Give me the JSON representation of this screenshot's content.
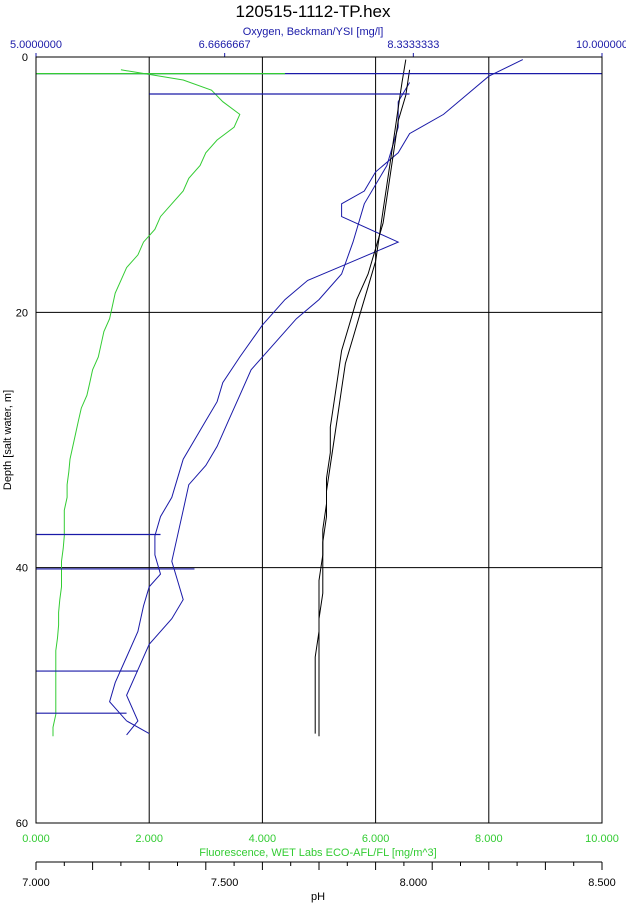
{
  "chart_data": {
    "type": "line",
    "title": "120515-1112-TP.hex",
    "ylabel": "Depth [salt water, m]",
    "ylim": [
      0,
      60
    ],
    "yticks": [
      "0",
      "20",
      "40",
      "60"
    ],
    "grid": true,
    "axes": {
      "oxygen": {
        "label": "Oxygen, Beckman/YSI [mg/l]",
        "range": [
          5.0,
          10.0
        ],
        "ticks": [
          "5.0000000",
          "6.6666667",
          "8.3333333",
          "10.000000"
        ],
        "color": "#1a1aa8",
        "position": "top"
      },
      "fluorescence": {
        "label": "Fluorescence, WET Labs ECO-AFL/FL [mg/m^3]",
        "range": [
          0,
          10
        ],
        "ticks": [
          "0.000",
          "2.000",
          "4.000",
          "6.000",
          "8.000",
          "10.000"
        ],
        "color": "#33cc33",
        "position": "bottom"
      },
      "ph": {
        "label": "pH",
        "range": [
          7.0,
          8.5
        ],
        "ticks": [
          "7.000",
          "7.500",
          "8.000",
          "8.500"
        ],
        "color": "#000000",
        "position": "bottom-2"
      }
    },
    "series": [
      {
        "axis": "fluorescence",
        "color": "#33cc33",
        "points": [
          [
            1.5,
            1.0
          ],
          [
            2.6,
            1.8
          ],
          [
            3.1,
            2.6
          ],
          [
            3.3,
            3.5
          ],
          [
            3.6,
            4.5
          ],
          [
            3.5,
            5.5
          ],
          [
            3.2,
            6.5
          ],
          [
            3.0,
            7.5
          ],
          [
            2.9,
            8.5
          ],
          [
            2.7,
            9.5
          ],
          [
            2.6,
            10.5
          ],
          [
            2.4,
            11.5
          ],
          [
            2.2,
            12.5
          ],
          [
            2.1,
            13.5
          ],
          [
            1.9,
            14.5
          ],
          [
            1.8,
            15.5
          ],
          [
            1.6,
            16.5
          ],
          [
            1.5,
            17.5
          ],
          [
            1.4,
            18.5
          ],
          [
            1.35,
            19.5
          ],
          [
            1.3,
            20.5
          ],
          [
            1.2,
            21.5
          ],
          [
            1.15,
            22.5
          ],
          [
            1.1,
            23.5
          ],
          [
            1.0,
            24.5
          ],
          [
            0.95,
            25.5
          ],
          [
            0.9,
            26.5
          ],
          [
            0.8,
            27.5
          ],
          [
            0.75,
            28.5
          ],
          [
            0.7,
            29.5
          ],
          [
            0.65,
            30.5
          ],
          [
            0.6,
            31.5
          ],
          [
            0.58,
            32.5
          ],
          [
            0.55,
            33.5
          ],
          [
            0.55,
            34.5
          ],
          [
            0.5,
            35.5
          ],
          [
            0.5,
            36.5
          ],
          [
            0.5,
            37.5
          ],
          [
            0.48,
            38.5
          ],
          [
            0.45,
            39.5
          ],
          [
            0.45,
            40.5
          ],
          [
            0.45,
            41.5
          ],
          [
            0.42,
            42.5
          ],
          [
            0.4,
            43.5
          ],
          [
            0.4,
            44.5
          ],
          [
            0.38,
            45.5
          ],
          [
            0.35,
            46.5
          ],
          [
            0.35,
            47.5
          ],
          [
            0.35,
            48.5
          ],
          [
            0.35,
            49.5
          ],
          [
            0.35,
            50.5
          ],
          [
            0.35,
            51.5
          ],
          [
            0.3,
            52.5
          ],
          [
            0.3,
            53.2
          ]
        ]
      },
      {
        "axis": "oxygen",
        "color": "#1a1aa8",
        "points": [
          [
            9.3,
            0.2
          ],
          [
            9.0,
            1.5
          ],
          [
            8.8,
            3.0
          ],
          [
            8.6,
            4.5
          ],
          [
            8.3,
            6.0
          ],
          [
            8.2,
            7.5
          ],
          [
            8.0,
            9.0
          ],
          [
            7.9,
            10.5
          ],
          [
            7.7,
            11.5
          ],
          [
            7.7,
            12.5
          ],
          [
            8.2,
            14.5
          ],
          [
            7.8,
            16.0
          ],
          [
            7.4,
            17.5
          ],
          [
            7.2,
            19.0
          ],
          [
            7.0,
            21.0
          ],
          [
            6.8,
            23.5
          ],
          [
            6.65,
            25.5
          ],
          [
            6.6,
            27.0
          ],
          [
            6.5,
            28.5
          ],
          [
            6.4,
            30.0
          ],
          [
            6.3,
            31.5
          ],
          [
            6.25,
            33.0
          ],
          [
            6.2,
            34.5
          ],
          [
            6.1,
            36.0
          ],
          [
            6.05,
            37.5
          ],
          [
            6.05,
            39.0
          ],
          [
            6.1,
            40.5
          ],
          [
            6.0,
            41.5
          ],
          [
            5.95,
            43.0
          ],
          [
            5.9,
            45.0
          ],
          [
            5.8,
            47.0
          ],
          [
            5.7,
            49.0
          ],
          [
            5.65,
            50.5
          ],
          [
            5.8,
            52.0
          ],
          [
            6.0,
            53.0
          ]
        ]
      },
      {
        "axis": "oxygen",
        "color": "#1a1aa8",
        "points": [
          [
            8.3,
            2.0
          ],
          [
            8.2,
            3.5
          ],
          [
            8.2,
            5.5
          ],
          [
            8.1,
            8.5
          ],
          [
            7.9,
            11.5
          ],
          [
            7.8,
            14.5
          ],
          [
            7.7,
            17.0
          ],
          [
            7.5,
            19.0
          ],
          [
            7.3,
            20.5
          ],
          [
            7.1,
            22.5
          ],
          [
            6.9,
            24.5
          ],
          [
            6.8,
            26.5
          ],
          [
            6.7,
            28.5
          ],
          [
            6.6,
            30.5
          ],
          [
            6.5,
            32.0
          ],
          [
            6.35,
            33.5
          ],
          [
            6.3,
            35.5
          ],
          [
            6.25,
            37.5
          ],
          [
            6.2,
            39.5
          ],
          [
            6.25,
            41.0
          ],
          [
            6.3,
            42.5
          ],
          [
            6.2,
            44.0
          ],
          [
            6.0,
            46.0
          ],
          [
            5.9,
            48.0
          ],
          [
            5.8,
            50.0
          ],
          [
            5.9,
            52.0
          ],
          [
            5.8,
            53.1
          ]
        ]
      },
      {
        "axis": "ph",
        "color": "#000000",
        "points": [
          [
            7.98,
            0.2
          ],
          [
            7.97,
            2.0
          ],
          [
            7.96,
            4.0
          ],
          [
            7.95,
            6.0
          ],
          [
            7.94,
            8.0
          ],
          [
            7.93,
            10.0
          ],
          [
            7.92,
            12.0
          ],
          [
            7.91,
            14.0
          ],
          [
            7.9,
            16.0
          ],
          [
            7.88,
            18.0
          ],
          [
            7.86,
            20.0
          ],
          [
            7.84,
            22.0
          ],
          [
            7.82,
            24.0
          ],
          [
            7.81,
            26.0
          ],
          [
            7.8,
            28.0
          ],
          [
            7.79,
            30.0
          ],
          [
            7.78,
            32.0
          ],
          [
            7.77,
            34.0
          ],
          [
            7.77,
            36.0
          ],
          [
            7.76,
            38.0
          ],
          [
            7.76,
            40.0
          ],
          [
            7.76,
            42.0
          ],
          [
            7.75,
            44.0
          ],
          [
            7.75,
            46.0
          ],
          [
            7.75,
            48.0
          ],
          [
            7.75,
            50.0
          ],
          [
            7.75,
            52.0
          ],
          [
            7.75,
            53.2
          ]
        ]
      },
      {
        "axis": "ph",
        "color": "#000000",
        "points": [
          [
            7.99,
            1.0
          ],
          [
            7.98,
            3.0
          ],
          [
            7.96,
            5.0
          ],
          [
            7.95,
            7.0
          ],
          [
            7.94,
            9.0
          ],
          [
            7.93,
            11.0
          ],
          [
            7.92,
            13.0
          ],
          [
            7.9,
            15.0
          ],
          [
            7.88,
            17.0
          ],
          [
            7.85,
            19.0
          ],
          [
            7.83,
            21.0
          ],
          [
            7.81,
            23.0
          ],
          [
            7.8,
            25.0
          ],
          [
            7.79,
            27.0
          ],
          [
            7.78,
            29.0
          ],
          [
            7.78,
            31.0
          ],
          [
            7.77,
            33.0
          ],
          [
            7.77,
            35.0
          ],
          [
            7.76,
            37.0
          ],
          [
            7.76,
            39.0
          ],
          [
            7.75,
            41.0
          ],
          [
            7.75,
            43.0
          ],
          [
            7.75,
            45.0
          ],
          [
            7.74,
            47.0
          ],
          [
            7.74,
            49.0
          ],
          [
            7.74,
            51.0
          ],
          [
            7.74,
            53.0
          ]
        ]
      }
    ],
    "spikes": [
      {
        "axis": "oxygen",
        "color": "#1a1aa8",
        "depth": 1.3,
        "from": 5.0,
        "to": 10.0
      },
      {
        "axis": "oxygen",
        "color": "#1a1aa8",
        "depth": 2.9,
        "from": 6.0,
        "to": 8.3
      },
      {
        "axis": "oxygen",
        "color": "#1a1aa8",
        "depth": 37.4,
        "from": 5.0,
        "to": 6.1
      },
      {
        "axis": "oxygen",
        "color": "#1a1aa8",
        "depth": 40.1,
        "from": 5.0,
        "to": 6.4
      },
      {
        "axis": "oxygen",
        "color": "#1a1aa8",
        "depth": 48.1,
        "from": 5.0,
        "to": 5.9
      },
      {
        "axis": "oxygen",
        "color": "#1a1aa8",
        "depth": 51.4,
        "from": 5.0,
        "to": 5.8
      },
      {
        "axis": "fluorescence",
        "color": "#33cc33",
        "depth": 1.3,
        "from": 0.0,
        "to": 4.4
      }
    ]
  }
}
